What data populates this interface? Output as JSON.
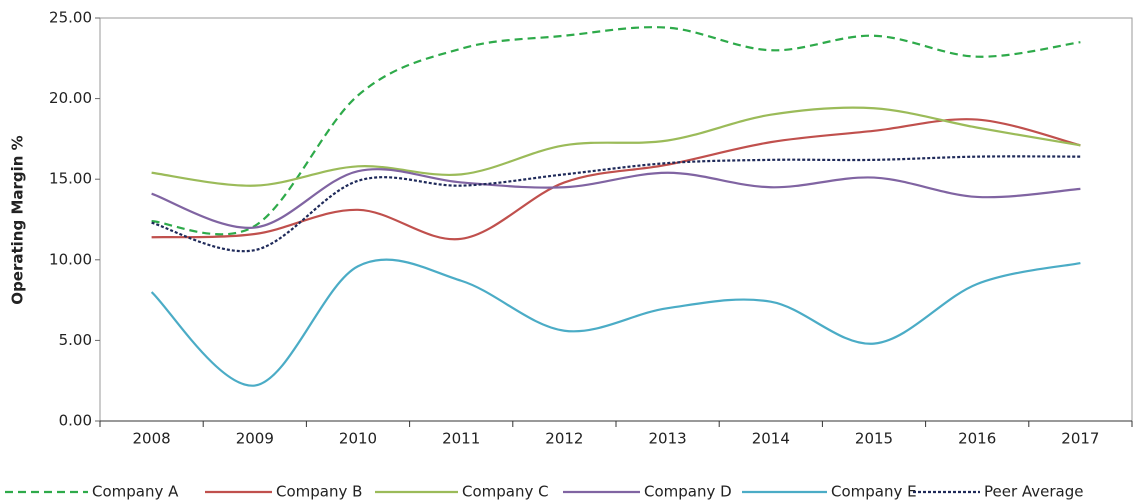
{
  "chart_data": {
    "type": "line",
    "y_label": "Operating Margin %",
    "categories": [
      "2008",
      "2009",
      "2010",
      "2011",
      "2012",
      "2013",
      "2014",
      "2015",
      "2016",
      "2017"
    ],
    "series": [
      {
        "name": "Company A",
        "color": "#2eaa4a",
        "dash": "dashed",
        "values": [
          12.4,
          12.1,
          20.2,
          23.1,
          23.9,
          24.4,
          23.0,
          23.9,
          22.6,
          23.5
        ]
      },
      {
        "name": "Company B",
        "color": "#c0504d",
        "dash": "solid",
        "values": [
          11.4,
          11.6,
          13.1,
          11.3,
          14.8,
          15.9,
          17.3,
          18.0,
          18.7,
          17.1
        ]
      },
      {
        "name": "Company C",
        "color": "#9bbb59",
        "dash": "solid",
        "values": [
          15.4,
          14.6,
          15.8,
          15.3,
          17.1,
          17.4,
          19.0,
          19.4,
          18.2,
          17.1
        ]
      },
      {
        "name": "Company D",
        "color": "#8064a2",
        "dash": "solid",
        "values": [
          14.1,
          12.0,
          15.5,
          14.8,
          14.5,
          15.4,
          14.5,
          15.1,
          13.9,
          14.4
        ]
      },
      {
        "name": "Company E",
        "color": "#4bacc6",
        "dash": "solid",
        "values": [
          8.0,
          2.2,
          9.6,
          8.7,
          5.6,
          7.0,
          7.4,
          4.8,
          8.5,
          9.8
        ]
      },
      {
        "name": "Peer Average",
        "color": "#1f2a5a",
        "dash": "dotted",
        "values": [
          12.3,
          10.6,
          14.9,
          14.6,
          15.3,
          16.0,
          16.2,
          16.2,
          16.4,
          16.4
        ]
      }
    ],
    "ylim": [
      0,
      25
    ],
    "yticks": [
      {
        "value": 0,
        "label": "0.00"
      },
      {
        "value": 5,
        "label": "5.00"
      },
      {
        "value": 10,
        "label": "10.00"
      },
      {
        "value": 15,
        "label": "15.00"
      },
      {
        "value": 20,
        "label": "20.00"
      },
      {
        "value": 25,
        "label": "25.00"
      }
    ],
    "legend": "bottom"
  }
}
